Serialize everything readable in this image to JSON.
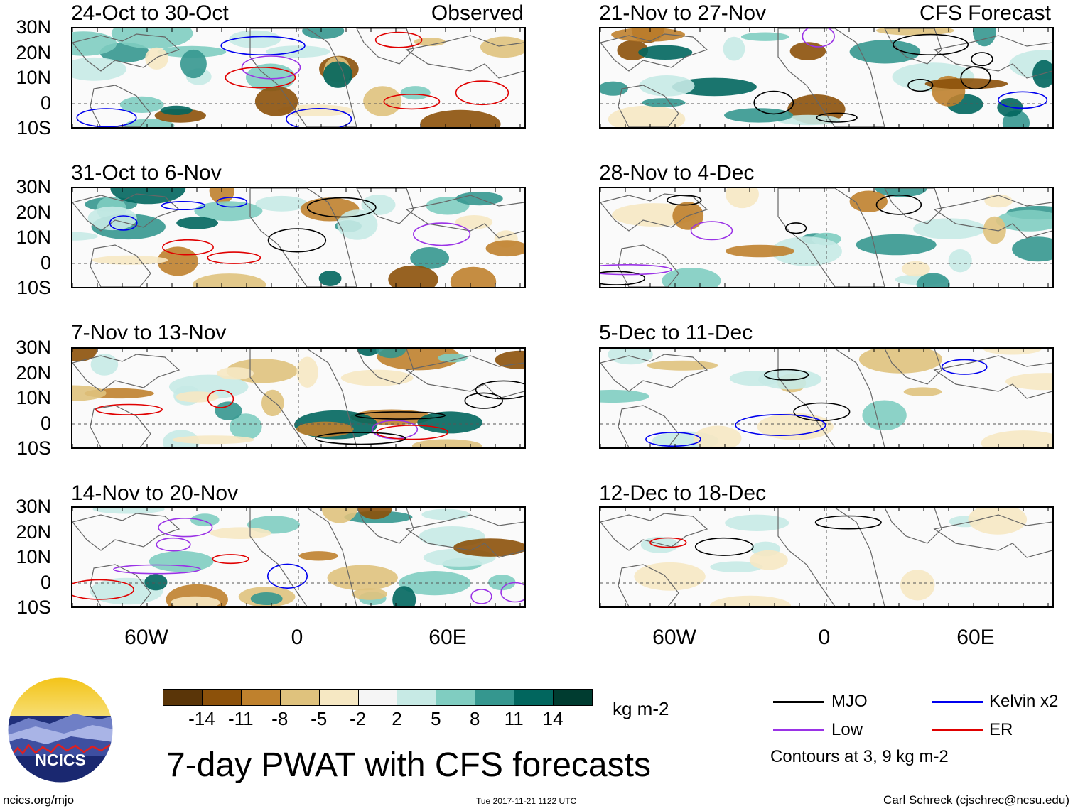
{
  "panels_left": [
    {
      "title": "24-Oct to 30-Oct",
      "corner": "Observed"
    },
    {
      "title": "31-Oct to 6-Nov",
      "corner": ""
    },
    {
      "title": "7-Nov to 13-Nov",
      "corner": ""
    },
    {
      "title": "14-Nov to 20-Nov",
      "corner": ""
    }
  ],
  "panels_right": [
    {
      "title": "21-Nov to 27-Nov",
      "corner": "CFS Forecast"
    },
    {
      "title": "28-Nov to 4-Dec",
      "corner": ""
    },
    {
      "title": "5-Dec to 11-Dec",
      "corner": ""
    },
    {
      "title": "12-Dec to 18-Dec",
      "corner": ""
    }
  ],
  "lat_labels": [
    "30N",
    "20N",
    "10N",
    "0",
    "10S"
  ],
  "lon_labels": [
    "60W",
    "0",
    "60E"
  ],
  "colorbar": {
    "colors": [
      "#5a3508",
      "#8c510a",
      "#bf812d",
      "#dfc27d",
      "#f6e8c3",
      "#f5f5f5",
      "#c7eae5",
      "#80cdc1",
      "#35978f",
      "#01665e",
      "#003c30"
    ],
    "labels": [
      "-14",
      "-11",
      "-8",
      "-5",
      "-2",
      "2",
      "5",
      "8",
      "11",
      "14"
    ],
    "units": "kg m-2"
  },
  "legend": {
    "items": [
      {
        "name": "MJO",
        "color": "#000000"
      },
      {
        "name": "Kelvin x2",
        "color": "#0000ee"
      },
      {
        "name": "Low",
        "color": "#9a32e6"
      },
      {
        "name": "ER",
        "color": "#e00000"
      }
    ],
    "note": "Contours at 3, 9 kg m-2"
  },
  "logo_text": "NCICS",
  "main_title": "7-day PWAT with CFS forecasts",
  "footer": {
    "url": "ncics.org/mjo",
    "timestamp": "Tue 2017-11-21 1122 UTC",
    "author": "Carl Schreck (cjschrec@ncsu.edu)"
  }
}
